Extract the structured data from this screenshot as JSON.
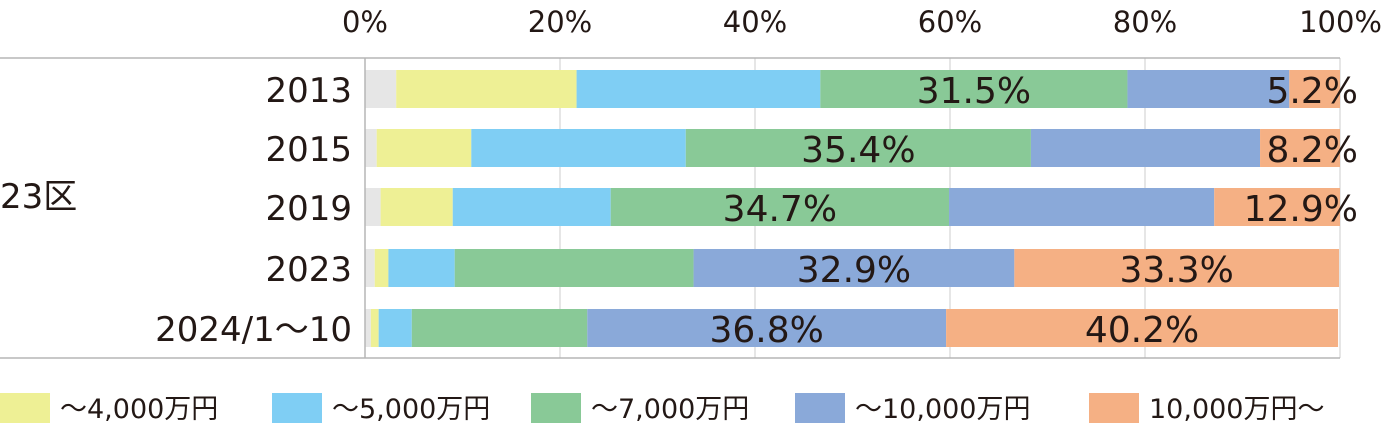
{
  "chart_data": {
    "type": "bar",
    "orientation": "horizontal",
    "stacked": true,
    "percent_stacked": true,
    "group_label": "23区",
    "categories": [
      "2013",
      "2015",
      "2019",
      "2023",
      "2024/1〜10"
    ],
    "x_ticks": [
      "0%",
      "20%",
      "40%",
      "60%",
      "80%",
      "100%"
    ],
    "xlim": [
      0,
      100
    ],
    "grid": true,
    "legend_position": "bottom",
    "series": [
      {
        "name": "",
        "color": "#e6e6e6",
        "values": [
          3.2,
          1.2,
          1.6,
          1.0,
          0.6
        ]
      },
      {
        "name": "〜4,000万円",
        "color": "#eef095",
        "values": [
          18.5,
          9.7,
          7.4,
          1.4,
          0.8
        ]
      },
      {
        "name": "〜5,000万円",
        "color": "#7fcef4",
        "values": [
          25.0,
          22.0,
          16.2,
          6.8,
          3.4
        ]
      },
      {
        "name": "〜7,000万円",
        "color": "#89c997",
        "values": [
          31.5,
          35.4,
          34.7,
          24.5,
          18.0
        ]
      },
      {
        "name": "〜10,000万円",
        "color": "#8aa9d9",
        "values": [
          16.6,
          23.5,
          27.2,
          32.9,
          36.8
        ]
      },
      {
        "name": "10,000万円〜",
        "color": "#f5b084",
        "values": [
          5.2,
          8.2,
          12.9,
          33.3,
          40.2
        ]
      }
    ],
    "data_labels": [
      {
        "category": "2013",
        "series": "〜7,000万円",
        "text": "31.5%"
      },
      {
        "category": "2013",
        "series": "10,000万円〜",
        "text": "5.2%"
      },
      {
        "category": "2015",
        "series": "〜7,000万円",
        "text": "35.4%"
      },
      {
        "category": "2015",
        "series": "10,000万円〜",
        "text": "8.2%"
      },
      {
        "category": "2019",
        "series": "〜7,000万円",
        "text": "34.7%"
      },
      {
        "category": "2019",
        "series": "10,000万円〜",
        "text": "12.9%"
      },
      {
        "category": "2023",
        "series": "〜10,000万円",
        "text": "32.9%"
      },
      {
        "category": "2023",
        "series": "10,000万円〜",
        "text": "33.3%"
      },
      {
        "category": "2024/1〜10",
        "series": "〜10,000万円",
        "text": "36.8%"
      },
      {
        "category": "2024/1〜10",
        "series": "10,000万円〜",
        "text": "40.2%"
      }
    ]
  }
}
